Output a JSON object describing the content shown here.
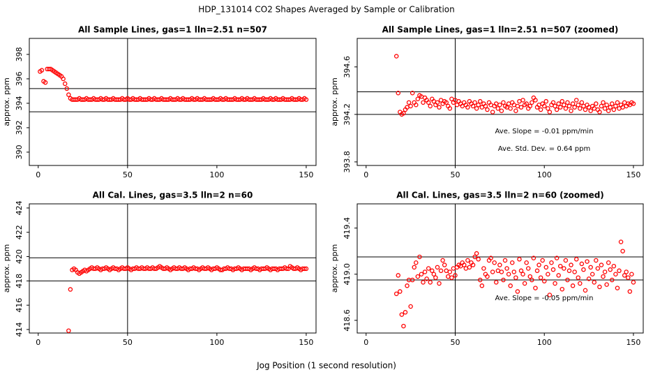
{
  "title": "HDP_131014  CO2 Shapes Averaged by Sample or Calibration",
  "xlabel": "Jog Position (1 second resolution)",
  "chart_data": [
    {
      "type": "scatter",
      "title": "All Sample Lines, gas=1 lln=2.51 n=507",
      "ylabel": "approx. ppm",
      "color": "#ff0000",
      "xlim": [
        -5,
        155.5
      ],
      "ylim": [
        388.91,
        399.31
      ],
      "xticks": [
        0,
        50,
        100,
        150
      ],
      "yticks": [
        390,
        392,
        394,
        396,
        398
      ],
      "hlines": [
        395.2,
        393.3
      ],
      "vlines": [
        50
      ],
      "annotations": [],
      "x": [
        1,
        2,
        3,
        4,
        5,
        6,
        7,
        8,
        9,
        10,
        11,
        12,
        13,
        14,
        15,
        16,
        17,
        18,
        19,
        20,
        21,
        22,
        23,
        24,
        25,
        26,
        27,
        28,
        29,
        30,
        31,
        32,
        33,
        34,
        35,
        36,
        37,
        38,
        39,
        40,
        41,
        42,
        43,
        44,
        45,
        46,
        47,
        48,
        49,
        50,
        51,
        52,
        53,
        54,
        55,
        56,
        57,
        58,
        59,
        60,
        61,
        62,
        63,
        64,
        65,
        66,
        67,
        68,
        69,
        70,
        71,
        72,
        73,
        74,
        75,
        76,
        77,
        78,
        79,
        80,
        81,
        82,
        83,
        84,
        85,
        86,
        87,
        88,
        89,
        90,
        91,
        92,
        93,
        94,
        95,
        96,
        97,
        98,
        99,
        100,
        101,
        102,
        103,
        104,
        105,
        106,
        107,
        108,
        109,
        110,
        111,
        112,
        113,
        114,
        115,
        116,
        117,
        118,
        119,
        120,
        121,
        122,
        123,
        124,
        125,
        126,
        127,
        128,
        129,
        130,
        131,
        132,
        133,
        134,
        135,
        136,
        137,
        138,
        139,
        140,
        141,
        142,
        143,
        144,
        145,
        146,
        147,
        148,
        149,
        150
      ],
      "values": [
        396.6,
        396.7,
        395.8,
        395.7,
        396.8,
        396.8,
        396.8,
        396.7,
        396.6,
        396.5,
        396.4,
        396.3,
        396.2,
        396.0,
        395.6,
        395.2,
        394.7,
        394.4,
        394.3,
        394.3,
        394.3,
        394.3,
        394.4,
        394.3,
        394.3,
        394.3,
        394.4,
        394.3,
        394.3,
        394.3,
        394.4,
        394.3,
        394.3,
        394.3,
        394.4,
        394.3,
        394.3,
        394.4,
        394.3,
        394.3,
        394.3,
        394.4,
        394.3,
        394.3,
        394.3,
        394.3,
        394.4,
        394.3,
        394.3,
        394.4,
        394.3,
        394.3,
        394.4,
        394.3,
        394.3,
        394.3,
        394.4,
        394.3,
        394.3,
        394.3,
        394.3,
        394.4,
        394.3,
        394.3,
        394.4,
        394.3,
        394.3,
        394.3,
        394.4,
        394.3,
        394.3,
        394.3,
        394.3,
        394.4,
        394.3,
        394.3,
        394.3,
        394.4,
        394.3,
        394.3,
        394.4,
        394.3,
        394.3,
        394.3,
        394.3,
        394.4,
        394.3,
        394.3,
        394.4,
        394.3,
        394.3,
        394.3,
        394.4,
        394.3,
        394.3,
        394.3,
        394.3,
        394.4,
        394.3,
        394.3,
        394.3,
        394.4,
        394.3,
        394.3,
        394.4,
        394.3,
        394.3,
        394.3,
        394.3,
        394.4,
        394.3,
        394.3,
        394.3,
        394.4,
        394.3,
        394.3,
        394.4,
        394.3,
        394.3,
        394.3,
        394.4,
        394.3,
        394.3,
        394.3,
        394.3,
        394.4,
        394.3,
        394.3,
        394.3,
        394.4,
        394.3,
        394.3,
        394.4,
        394.3,
        394.3,
        394.3,
        394.4,
        394.3,
        394.3,
        394.3,
        394.3,
        394.4,
        394.3,
        394.3,
        394.3,
        394.4,
        394.3,
        394.3,
        394.4,
        394.3
      ]
    },
    {
      "type": "scatter",
      "title": "All Sample Lines, gas=1 lln=2.51 n=507 (zoomed)",
      "ylabel": "approx. ppm",
      "color": "#ff0000",
      "xlim": [
        -5,
        155.5
      ],
      "ylim": [
        393.77,
        394.84
      ],
      "xticks": [
        0,
        50,
        100,
        150
      ],
      "yticks": [
        393.8,
        394.2,
        394.6
      ],
      "hlines": [
        394.39,
        394.2
      ],
      "vlines": [
        50
      ],
      "annotations": [
        "Ave. Slope =  -0.01  ppm/min",
        "Ave. Std. Dev. =  0.64  ppm"
      ],
      "x": [
        17,
        18,
        19,
        20,
        21,
        22,
        23,
        24,
        25,
        26,
        27,
        28,
        29,
        30,
        31,
        32,
        33,
        34,
        35,
        36,
        37,
        38,
        39,
        40,
        41,
        42,
        43,
        44,
        45,
        46,
        47,
        48,
        49,
        50,
        51,
        52,
        53,
        54,
        55,
        56,
        57,
        58,
        59,
        60,
        61,
        62,
        63,
        64,
        65,
        66,
        67,
        68,
        69,
        70,
        71,
        72,
        73,
        74,
        75,
        76,
        77,
        78,
        79,
        80,
        81,
        82,
        83,
        84,
        85,
        86,
        87,
        88,
        89,
        90,
        91,
        92,
        93,
        94,
        95,
        96,
        97,
        98,
        99,
        100,
        101,
        102,
        103,
        104,
        105,
        106,
        107,
        108,
        109,
        110,
        111,
        112,
        113,
        114,
        115,
        116,
        117,
        118,
        119,
        120,
        121,
        122,
        123,
        124,
        125,
        126,
        127,
        128,
        129,
        130,
        131,
        132,
        133,
        134,
        135,
        136,
        137,
        138,
        139,
        140,
        141,
        142,
        143,
        144,
        145,
        146,
        147,
        148,
        149,
        150
      ],
      "values": [
        394.69,
        394.38,
        394.22,
        394.2,
        394.21,
        394.24,
        394.26,
        394.3,
        394.27,
        394.38,
        394.3,
        394.28,
        394.33,
        394.36,
        394.35,
        394.3,
        394.34,
        394.32,
        394.3,
        394.27,
        394.33,
        394.31,
        394.28,
        394.3,
        394.26,
        394.32,
        394.29,
        394.31,
        394.3,
        394.27,
        394.25,
        394.33,
        394.3,
        394.32,
        394.28,
        394.31,
        394.29,
        394.27,
        394.3,
        394.28,
        394.26,
        394.31,
        394.29,
        394.27,
        394.3,
        394.25,
        394.28,
        394.31,
        394.26,
        394.29,
        394.27,
        394.24,
        394.3,
        394.28,
        394.22,
        394.27,
        394.29,
        394.25,
        394.28,
        394.23,
        394.3,
        394.27,
        394.26,
        394.29,
        394.25,
        394.3,
        394.28,
        394.23,
        394.27,
        394.31,
        394.26,
        394.32,
        394.28,
        394.29,
        394.25,
        394.27,
        394.3,
        394.34,
        394.32,
        394.26,
        394.28,
        394.24,
        394.29,
        394.27,
        394.31,
        394.25,
        394.22,
        394.28,
        394.3,
        394.27,
        394.24,
        394.29,
        394.26,
        394.31,
        394.28,
        394.25,
        394.3,
        394.27,
        394.23,
        394.29,
        394.26,
        394.32,
        394.28,
        394.25,
        394.3,
        394.27,
        394.24,
        394.28,
        394.26,
        394.23,
        394.27,
        394.25,
        394.29,
        394.24,
        394.22,
        394.27,
        394.3,
        394.25,
        394.28,
        394.23,
        394.26,
        394.29,
        394.24,
        394.27,
        394.3,
        394.25,
        394.28,
        394.26,
        394.3,
        394.27,
        394.29,
        394.28,
        394.3,
        394.29
      ]
    },
    {
      "type": "scatter",
      "title": "All Cal. Lines, gas=3.5 lln=2 n=60",
      "ylabel": "approx. ppm",
      "color": "#ff0000",
      "xlim": [
        -5,
        155.5
      ],
      "ylim": [
        413.71,
        424.34
      ],
      "xticks": [
        0,
        50,
        100,
        150
      ],
      "yticks": [
        414,
        416,
        418,
        420,
        422,
        424
      ],
      "hlines": [
        419.9,
        418.0
      ],
      "vlines": [
        50
      ],
      "annotations": [],
      "x": [
        17,
        18,
        19,
        20,
        21,
        22,
        23,
        24,
        25,
        26,
        27,
        28,
        29,
        30,
        31,
        32,
        33,
        34,
        35,
        36,
        37,
        38,
        39,
        40,
        41,
        42,
        43,
        44,
        45,
        46,
        47,
        48,
        49,
        50,
        51,
        52,
        53,
        54,
        55,
        56,
        57,
        58,
        59,
        60,
        61,
        62,
        63,
        64,
        65,
        66,
        67,
        68,
        69,
        70,
        71,
        72,
        73,
        74,
        75,
        76,
        77,
        78,
        79,
        80,
        81,
        82,
        83,
        84,
        85,
        86,
        87,
        88,
        89,
        90,
        91,
        92,
        93,
        94,
        95,
        96,
        97,
        98,
        99,
        100,
        101,
        102,
        103,
        104,
        105,
        106,
        107,
        108,
        109,
        110,
        111,
        112,
        113,
        114,
        115,
        116,
        117,
        118,
        119,
        120,
        121,
        122,
        123,
        124,
        125,
        126,
        127,
        128,
        129,
        130,
        131,
        132,
        133,
        134,
        135,
        136,
        137,
        138,
        139,
        140,
        141,
        142,
        143,
        144,
        145,
        146,
        147,
        148,
        149,
        150
      ],
      "values": [
        413.9,
        417.3,
        418.9,
        419.0,
        418.9,
        418.7,
        418.6,
        418.7,
        418.8,
        418.9,
        418.8,
        418.9,
        419.0,
        419.1,
        419.0,
        419.0,
        419.1,
        419.0,
        418.9,
        419.0,
        419.0,
        419.1,
        419.0,
        418.9,
        419.0,
        419.1,
        419.0,
        419.0,
        418.9,
        419.0,
        419.1,
        419.0,
        419.0,
        419.1,
        419.0,
        418.9,
        419.0,
        419.0,
        419.1,
        419.0,
        419.0,
        419.1,
        419.0,
        419.0,
        419.1,
        419.0,
        419.0,
        419.1,
        419.0,
        419.0,
        419.1,
        419.2,
        419.1,
        419.0,
        419.0,
        419.1,
        419.0,
        418.9,
        419.0,
        419.1,
        419.0,
        419.0,
        419.1,
        419.0,
        419.0,
        419.1,
        419.0,
        418.9,
        419.0,
        419.0,
        419.1,
        419.0,
        419.0,
        418.9,
        419.0,
        419.1,
        419.0,
        419.0,
        419.1,
        419.0,
        418.9,
        419.0,
        419.0,
        419.1,
        419.0,
        418.9,
        418.9,
        419.0,
        419.0,
        419.1,
        419.0,
        419.0,
        418.9,
        419.0,
        419.0,
        419.1,
        419.0,
        418.9,
        419.0,
        419.0,
        419.0,
        419.0,
        418.9,
        419.0,
        419.1,
        419.0,
        419.0,
        418.9,
        419.0,
        419.0,
        419.0,
        419.1,
        419.0,
        418.9,
        419.0,
        419.0,
        419.0,
        418.9,
        419.0,
        419.0,
        419.0,
        419.1,
        419.0,
        419.0,
        419.2,
        419.1,
        419.0,
        419.0,
        419.1,
        419.0,
        418.9,
        419.0,
        419.0,
        419.0
      ]
    },
    {
      "type": "scatter",
      "title": "All Cal. Lines, gas=3.5 lln=2 n=60 (zoomed)",
      "ylabel": "approx. ppm",
      "color": "#ff0000",
      "xlim": [
        -5,
        155.5
      ],
      "ylim": [
        418.49,
        419.61
      ],
      "xticks": [
        0,
        50,
        100,
        150
      ],
      "yticks": [
        418.6,
        {
          "value": 419,
          "label": "419.0"
        },
        419.4
      ],
      "hlines": [
        419.15,
        418.95
      ],
      "vlines": [
        50
      ],
      "annotations": [
        "Ave. Slope =  -0.05  ppm/min"
      ],
      "x": [
        17,
        18,
        19,
        20,
        21,
        22,
        23,
        24,
        25,
        26,
        27,
        28,
        29,
        30,
        31,
        32,
        33,
        34,
        35,
        36,
        37,
        38,
        39,
        40,
        41,
        42,
        43,
        44,
        45,
        46,
        47,
        48,
        49,
        50,
        51,
        52,
        53,
        54,
        55,
        56,
        57,
        58,
        59,
        60,
        61,
        62,
        63,
        64,
        65,
        66,
        67,
        68,
        69,
        70,
        71,
        72,
        73,
        74,
        75,
        76,
        77,
        78,
        79,
        80,
        81,
        82,
        83,
        84,
        85,
        86,
        87,
        88,
        89,
        90,
        91,
        92,
        93,
        94,
        95,
        96,
        97,
        98,
        99,
        100,
        101,
        102,
        103,
        104,
        105,
        106,
        107,
        108,
        109,
        110,
        111,
        112,
        113,
        114,
        115,
        116,
        117,
        118,
        119,
        120,
        121,
        122,
        123,
        124,
        125,
        126,
        127,
        128,
        129,
        130,
        131,
        132,
        133,
        134,
        135,
        136,
        137,
        138,
        139,
        140,
        141,
        142,
        143,
        144,
        145,
        146,
        147,
        148,
        149,
        150
      ],
      "values": [
        418.83,
        418.99,
        418.85,
        418.65,
        418.55,
        418.67,
        418.9,
        418.95,
        418.72,
        418.95,
        419.06,
        419.1,
        418.98,
        419.15,
        419.0,
        418.93,
        419.02,
        418.96,
        419.05,
        418.93,
        419.03,
        419.0,
        418.97,
        419.06,
        418.92,
        419.03,
        419.12,
        419.08,
        419.03,
        418.98,
        419.02,
        418.97,
        419.05,
        418.99,
        419.06,
        419.08,
        419.07,
        419.1,
        419.08,
        419.05,
        419.12,
        419.06,
        419.1,
        419.08,
        419.15,
        419.18,
        419.13,
        418.95,
        418.9,
        419.05,
        419.0,
        418.98,
        419.12,
        419.14,
        419.02,
        419.1,
        418.93,
        419.03,
        419.08,
        419.02,
        418.95,
        419.12,
        419.05,
        419.0,
        418.9,
        419.1,
        419.02,
        418.97,
        418.85,
        419.13,
        419.03,
        419.0,
        418.92,
        419.1,
        419.05,
        418.98,
        418.95,
        419.14,
        418.88,
        419.03,
        419.08,
        418.97,
        419.12,
        418.94,
        419.06,
        419.0,
        418.82,
        419.1,
        419.04,
        418.92,
        419.14,
        418.99,
        419.07,
        418.87,
        419.05,
        419.12,
        418.95,
        419.03,
        419.08,
        418.9,
        419.02,
        419.13,
        418.97,
        418.92,
        419.09,
        419.04,
        418.86,
        419.11,
        418.96,
        419.06,
        419.0,
        418.93,
        419.12,
        419.05,
        418.89,
        419.08,
        418.98,
        419.02,
        418.91,
        419.1,
        419.04,
        418.95,
        419.07,
        419.0,
        418.88,
        419.03,
        419.28,
        419.2,
        418.99,
        419.02,
        418.97,
        418.85,
        419.0,
        418.93
      ]
    }
  ]
}
